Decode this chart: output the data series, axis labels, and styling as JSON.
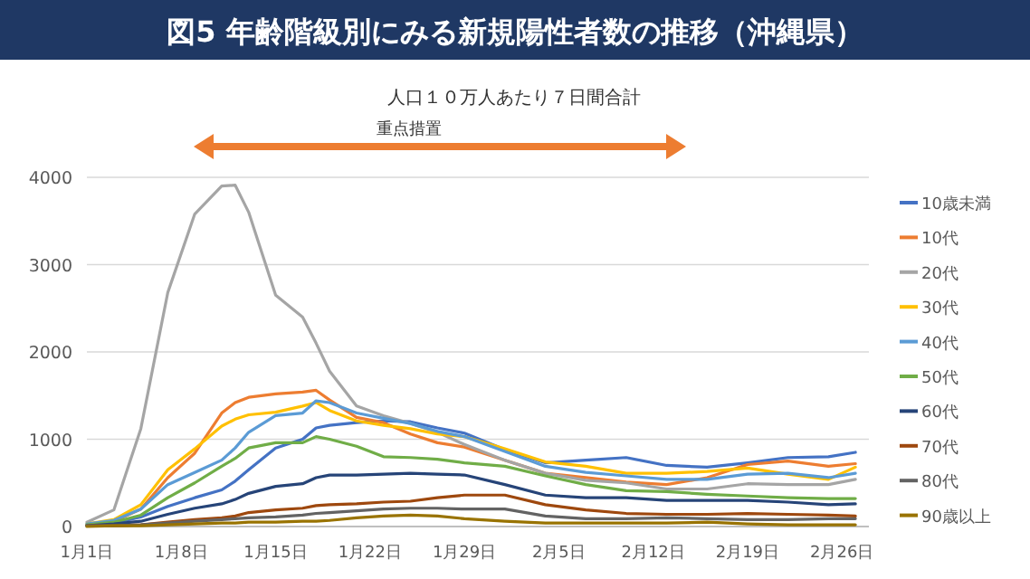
{
  "chart_data": {
    "type": "line",
    "title": "図5 年齢階級別にみる新規陽性者数の推移（沖縄県）",
    "subtitle": "人口１０万人あたり７日間合計",
    "x": [
      "--01-01",
      "--01-03",
      "--01-05",
      "--01-07",
      "--01-09",
      "--01-11",
      "--01-12",
      "--01-13",
      "--01-15",
      "--01-17",
      "--01-18",
      "--01-19",
      "--01-21",
      "--01-23",
      "--01-25",
      "--01-27",
      "--01-29",
      "--02-01",
      "--02-04",
      "--02-07",
      "--02-10",
      "--02-13",
      "--02-16",
      "--02-19",
      "--02-22",
      "--02-25",
      "--02-27"
    ],
    "series": [
      {
        "name": "10歳未満",
        "color": "#4472c4",
        "values": [
          20,
          40,
          110,
          230,
          330,
          420,
          520,
          650,
          900,
          1000,
          1130,
          1160,
          1190,
          1210,
          1200,
          1130,
          1070,
          880,
          730,
          760,
          790,
          700,
          680,
          730,
          790,
          800,
          850
        ]
      },
      {
        "name": "10代",
        "color": "#ed7d31",
        "values": [
          20,
          60,
          200,
          560,
          840,
          1300,
          1420,
          1480,
          1520,
          1540,
          1560,
          1450,
          1250,
          1190,
          1060,
          960,
          910,
          760,
          610,
          560,
          510,
          480,
          560,
          710,
          750,
          690,
          720
        ]
      },
      {
        "name": "20代",
        "color": "#a5a5a5",
        "values": [
          50,
          190,
          1120,
          2680,
          3580,
          3900,
          3910,
          3600,
          2650,
          2400,
          2100,
          1780,
          1380,
          1270,
          1180,
          1080,
          940,
          760,
          610,
          530,
          500,
          430,
          430,
          490,
          480,
          480,
          540
        ]
      },
      {
        "name": "30代",
        "color": "#ffc000",
        "values": [
          30,
          80,
          250,
          650,
          890,
          1150,
          1230,
          1280,
          1310,
          1380,
          1420,
          1330,
          1210,
          1160,
          1120,
          1060,
          1030,
          890,
          740,
          690,
          610,
          610,
          630,
          670,
          600,
          540,
          680
        ]
      },
      {
        "name": "40代",
        "color": "#5b9bd5",
        "values": [
          30,
          70,
          200,
          480,
          620,
          760,
          900,
          1080,
          1270,
          1300,
          1440,
          1420,
          1300,
          1240,
          1180,
          1090,
          1030,
          860,
          690,
          620,
          580,
          540,
          540,
          600,
          610,
          560,
          610
        ]
      },
      {
        "name": "50代",
        "color": "#70ad47",
        "values": [
          20,
          50,
          130,
          330,
          500,
          690,
          780,
          900,
          960,
          960,
          1030,
          1000,
          920,
          800,
          790,
          770,
          730,
          690,
          580,
          480,
          410,
          400,
          370,
          350,
          330,
          320,
          320
        ]
      },
      {
        "name": "60代",
        "color": "#264478",
        "values": [
          10,
          30,
          60,
          140,
          210,
          260,
          310,
          380,
          460,
          490,
          560,
          590,
          590,
          600,
          610,
          600,
          590,
          480,
          360,
          330,
          330,
          300,
          300,
          300,
          280,
          250,
          260
        ]
      },
      {
        "name": "70代",
        "color": "#9e480e",
        "values": [
          10,
          10,
          20,
          50,
          80,
          100,
          120,
          160,
          190,
          210,
          240,
          250,
          260,
          280,
          290,
          330,
          360,
          360,
          250,
          190,
          150,
          140,
          140,
          150,
          140,
          130,
          120
        ]
      },
      {
        "name": "80代",
        "color": "#636363",
        "values": [
          10,
          10,
          20,
          40,
          60,
          80,
          90,
          100,
          110,
          130,
          150,
          160,
          180,
          200,
          210,
          210,
          200,
          200,
          120,
          90,
          90,
          100,
          90,
          80,
          80,
          90,
          90
        ]
      },
      {
        "name": "90歳以上",
        "color": "#997300",
        "values": [
          0,
          10,
          10,
          20,
          30,
          40,
          40,
          50,
          50,
          60,
          60,
          70,
          100,
          120,
          130,
          120,
          90,
          60,
          40,
          40,
          40,
          40,
          50,
          30,
          20,
          20,
          20
        ]
      }
    ],
    "xlim": [
      "--01-01",
      "--02-28"
    ],
    "xticks": [
      {
        "value": "--01-01",
        "label": "1月1日"
      },
      {
        "value": "--01-08",
        "label": "1月8日"
      },
      {
        "value": "--01-15",
        "label": "1月15日"
      },
      {
        "value": "--01-22",
        "label": "1月22日"
      },
      {
        "value": "--01-29",
        "label": "1月29日"
      },
      {
        "value": "--02-05",
        "label": "2月5日"
      },
      {
        "value": "--02-12",
        "label": "2月12日"
      },
      {
        "value": "--02-19",
        "label": "2月19日"
      },
      {
        "value": "--02-26",
        "label": "2月26日"
      }
    ],
    "ylim": [
      0,
      4000
    ],
    "yticks": [
      0,
      1000,
      2000,
      3000,
      4000
    ],
    "annotations": [
      "重点措置"
    ],
    "grid": "y",
    "legend": "right",
    "marker": "none",
    "line_style": "solid"
  }
}
